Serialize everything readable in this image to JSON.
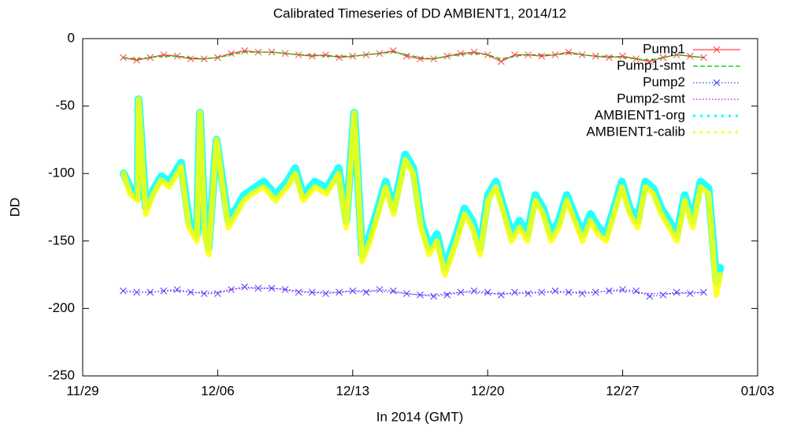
{
  "chart_data": {
    "type": "line",
    "title": "Calibrated Timeseries of DD AMBIENT1, 2014/12",
    "x_label": "In 2014 (GMT)",
    "y_label": "DD",
    "xlim": [
      0,
      35
    ],
    "xticks": [
      {
        "value": 0,
        "label": "11/29"
      },
      {
        "value": 7,
        "label": "12/06"
      },
      {
        "value": 14,
        "label": "12/13"
      },
      {
        "value": 21,
        "label": "12/20"
      },
      {
        "value": 28,
        "label": "12/27"
      },
      {
        "value": 35,
        "label": "01/03"
      }
    ],
    "ylim": [
      -250,
      0
    ],
    "yticks": [
      -250,
      -200,
      -150,
      -100,
      -50,
      0
    ],
    "legend": "top-right",
    "series": [
      {
        "name": "Pump1",
        "color": "#ff4040",
        "style": "linespoints",
        "dash": "solid",
        "x": [
          2.1,
          2.8,
          3.5,
          4.2,
          4.9,
          5.6,
          6.3,
          7,
          7.7,
          8.4,
          9.1,
          9.8,
          10.5,
          11.2,
          11.9,
          12.6,
          13.3,
          14,
          14.7,
          15.4,
          16.1,
          16.8,
          17.5,
          18.2,
          18.9,
          19.6,
          20.3,
          21,
          21.7,
          22.4,
          23.1,
          23.8,
          24.5,
          25.2,
          25.9,
          26.6,
          27.3,
          28,
          28.7,
          29.4,
          30.1,
          30.8,
          31.5,
          32.2
        ],
        "values": [
          -14,
          -16,
          -14,
          -12,
          -13,
          -15,
          -15,
          -14,
          -11,
          -9,
          -10,
          -10,
          -11,
          -12,
          -13,
          -12,
          -14,
          -13,
          -12,
          -11,
          -9,
          -13,
          -15,
          -15,
          -13,
          -11,
          -10,
          -12,
          -17,
          -12,
          -12,
          -13,
          -12,
          -10,
          -12,
          -13,
          -14,
          -13,
          -15,
          -17,
          -14,
          -12,
          -13,
          -14
        ]
      },
      {
        "name": "Pump1-smt",
        "color": "#00c000",
        "style": "lines",
        "dash": "dashed",
        "x": [
          2.1,
          2.8,
          3.5,
          4.2,
          4.9,
          5.6,
          6.3,
          7,
          7.7,
          8.4,
          9.1,
          9.8,
          10.5,
          11.2,
          11.9,
          12.6,
          13.3,
          14,
          14.7,
          15.4,
          16.1,
          16.8,
          17.5,
          18.2,
          18.9,
          19.6,
          20.3,
          21,
          21.7,
          22.4,
          23.1,
          23.8,
          24.5,
          25.2,
          25.9,
          26.6,
          27.3,
          28,
          28.7,
          29.4,
          30.1,
          30.8,
          31.5,
          32.2
        ],
        "values": [
          -14,
          -15,
          -14,
          -13,
          -13,
          -14,
          -15,
          -14,
          -12,
          -10,
          -10,
          -10,
          -11,
          -12,
          -12,
          -13,
          -13,
          -13,
          -12,
          -11,
          -10,
          -12,
          -14,
          -15,
          -13,
          -12,
          -11,
          -12,
          -15,
          -13,
          -12,
          -12,
          -12,
          -11,
          -12,
          -13,
          -13,
          -14,
          -15,
          -16,
          -14,
          -12,
          -13,
          -14
        ]
      },
      {
        "name": "Pump2",
        "color": "#4040ff",
        "style": "linespoints",
        "dash": "dotted",
        "x": [
          2.1,
          2.8,
          3.5,
          4.2,
          4.9,
          5.6,
          6.3,
          7,
          7.7,
          8.4,
          9.1,
          9.8,
          10.5,
          11.2,
          11.9,
          12.6,
          13.3,
          14,
          14.7,
          15.4,
          16.1,
          16.8,
          17.5,
          18.2,
          18.9,
          19.6,
          20.3,
          21,
          21.7,
          22.4,
          23.1,
          23.8,
          24.5,
          25.2,
          25.9,
          26.6,
          27.3,
          28,
          28.7,
          29.4,
          30.1,
          30.8,
          31.5,
          32.2
        ],
        "values": [
          -187,
          -188,
          -188,
          -187,
          -186,
          -188,
          -189,
          -189,
          -186,
          -184,
          -185,
          -185,
          -186,
          -188,
          -188,
          -189,
          -188,
          -187,
          -188,
          -186,
          -187,
          -189,
          -190,
          -191,
          -190,
          -188,
          -187,
          -188,
          -190,
          -188,
          -189,
          -188,
          -187,
          -188,
          -189,
          -188,
          -187,
          -186,
          -187,
          -191,
          -190,
          -188,
          -189,
          -188
        ]
      },
      {
        "name": "Pump2-smt",
        "color": "#c000ff",
        "style": "lines",
        "dash": "dotted",
        "x": [
          2.1,
          2.8,
          3.5,
          4.2,
          4.9,
          5.6,
          6.3,
          7,
          7.7,
          8.4,
          9.1,
          9.8,
          10.5,
          11.2,
          11.9,
          12.6,
          13.3,
          14,
          14.7,
          15.4,
          16.1,
          16.8,
          17.5,
          18.2,
          18.9,
          19.6,
          20.3,
          21,
          21.7,
          22.4,
          23.1,
          23.8,
          24.5,
          25.2,
          25.9,
          26.6,
          27.3,
          28,
          28.7,
          29.4,
          30.1,
          30.8,
          31.5,
          32.2
        ],
        "values": [
          -187,
          -188,
          -188,
          -187,
          -187,
          -188,
          -188,
          -188,
          -186,
          -185,
          -185,
          -185,
          -186,
          -187,
          -188,
          -188,
          -188,
          -187,
          -187,
          -187,
          -188,
          -189,
          -190,
          -190,
          -189,
          -188,
          -188,
          -189,
          -189,
          -189,
          -188,
          -188,
          -188,
          -188,
          -188,
          -188,
          -187,
          -187,
          -188,
          -189,
          -189,
          -189,
          -188,
          -188
        ]
      },
      {
        "name": "AMBIENT1-org",
        "color": "#00ffff",
        "style": "points",
        "dash": "solid",
        "x": [
          2.12,
          2.45,
          2.86,
          2.9,
          3.27,
          3.67,
          4.08,
          4.49,
          5.1,
          5.51,
          5.92,
          6.08,
          6.33,
          6.53,
          6.94,
          7.55,
          7.96,
          8.37,
          8.78,
          9.39,
          10,
          10.61,
          11.02,
          11.43,
          12.04,
          12.65,
          13.27,
          13.67,
          14.08,
          14.49,
          14.9,
          15.31,
          15.71,
          16.12,
          16.73,
          17.14,
          17.55,
          17.96,
          18.37,
          18.78,
          19.39,
          19.8,
          20.2,
          20.61,
          21.02,
          21.43,
          21.84,
          22.24,
          22.65,
          23.06,
          23.47,
          23.88,
          24.29,
          24.69,
          25.1,
          25.92,
          26.33,
          26.73,
          27.14,
          27.55,
          27.96,
          28.37,
          28.78,
          29.18,
          29.59,
          30,
          30.41,
          30.82,
          31.22,
          31.63,
          32.04,
          32.45,
          32.65,
          32.86,
          33.06
        ],
        "values": [
          -100,
          -110,
          -118,
          -45,
          -125,
          -112,
          -102,
          -106,
          -92,
          -135,
          -145,
          -55,
          -140,
          -155,
          -75,
          -135,
          -126,
          -116,
          -112,
          -106,
          -116,
          -106,
          -96,
          -116,
          -106,
          -111,
          -96,
          -135,
          -55,
          -160,
          -145,
          -126,
          -106,
          -126,
          -86,
          -96,
          -135,
          -155,
          -145,
          -170,
          -145,
          -126,
          -135,
          -155,
          -116,
          -106,
          -126,
          -145,
          -135,
          -145,
          -116,
          -126,
          -145,
          -135,
          -116,
          -145,
          -130,
          -140,
          -145,
          -126,
          -106,
          -126,
          -135,
          -106,
          -111,
          -126,
          -135,
          -145,
          -116,
          -135,
          -106,
          -111,
          -145,
          -180,
          -170
        ]
      },
      {
        "name": "AMBIENT1-calib",
        "color": "#ffff00",
        "style": "points",
        "dash": "solid",
        "x": [
          2.12,
          2.45,
          2.86,
          2.9,
          3.27,
          3.67,
          4.08,
          4.49,
          5.1,
          5.51,
          5.92,
          6.08,
          6.33,
          6.53,
          6.94,
          7.55,
          7.96,
          8.37,
          8.78,
          9.39,
          10,
          10.61,
          11.02,
          11.43,
          12.04,
          12.65,
          13.27,
          13.67,
          14.08,
          14.49,
          14.9,
          15.31,
          15.71,
          16.12,
          16.73,
          17.14,
          17.55,
          17.96,
          18.37,
          18.78,
          19.39,
          19.8,
          20.2,
          20.61,
          21.02,
          21.43,
          21.84,
          22.24,
          22.65,
          23.06,
          23.47,
          23.88,
          24.29,
          24.69,
          25.1,
          25.92,
          26.33,
          26.73,
          27.14,
          27.55,
          27.96,
          28.37,
          28.78,
          29.18,
          29.59,
          30,
          30.41,
          30.82,
          31.22,
          31.63,
          32.04,
          32.45,
          32.65,
          32.86,
          33.06
        ],
        "values": [
          -100,
          -115,
          -120,
          -45,
          -130,
          -115,
          -105,
          -110,
          -95,
          -140,
          -150,
          -55,
          -145,
          -160,
          -75,
          -140,
          -130,
          -120,
          -115,
          -110,
          -120,
          -110,
          -100,
          -120,
          -110,
          -115,
          -100,
          -140,
          -55,
          -165,
          -150,
          -130,
          -110,
          -130,
          -90,
          -100,
          -140,
          -160,
          -150,
          -175,
          -150,
          -130,
          -140,
          -160,
          -120,
          -110,
          -130,
          -150,
          -140,
          -150,
          -120,
          -130,
          -150,
          -140,
          -120,
          -150,
          -135,
          -145,
          -150,
          -130,
          -110,
          -130,
          -140,
          -110,
          -115,
          -130,
          -140,
          -150,
          -120,
          -140,
          -110,
          -115,
          -150,
          -190,
          -175
        ]
      }
    ]
  }
}
